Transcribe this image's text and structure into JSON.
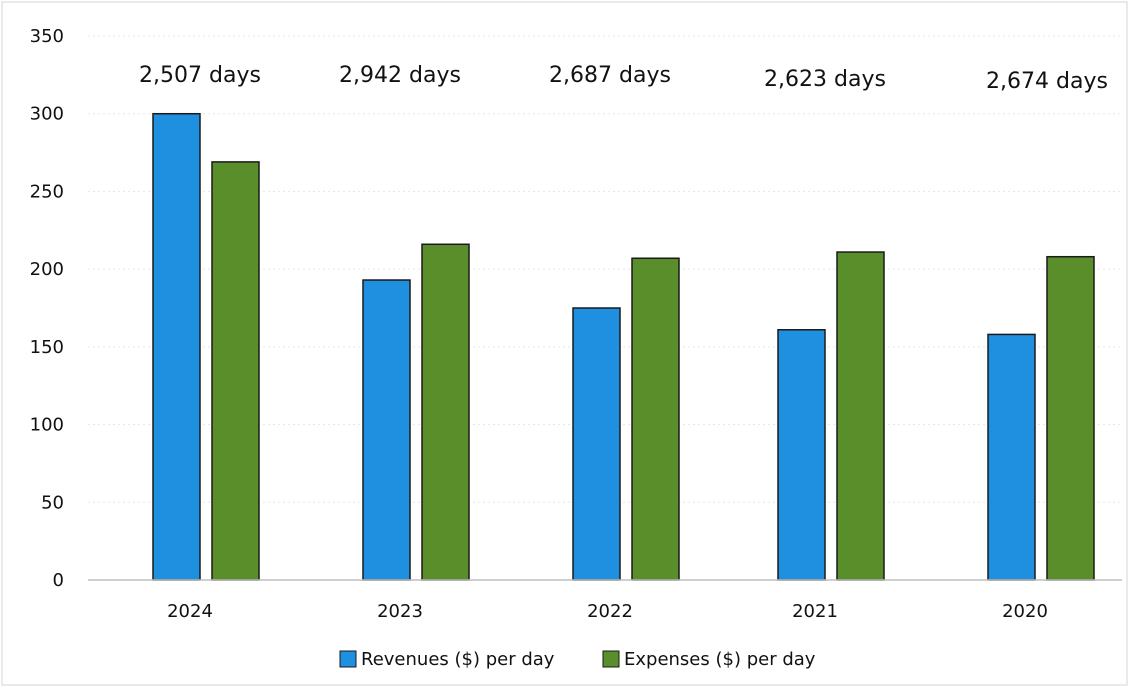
{
  "chart_data": {
    "type": "bar",
    "title": "",
    "xlabel": "",
    "ylabel": "",
    "categories": [
      "2024",
      "2023",
      "2022",
      "2021",
      "2020"
    ],
    "series": [
      {
        "name": "Revenues ($) per day",
        "color": "#1f8fe0",
        "values": [
          300,
          193,
          175,
          161,
          158
        ]
      },
      {
        "name": "Expenses ($) per day",
        "color": "#5a8e2a",
        "values": [
          269,
          216,
          207,
          211,
          208
        ]
      }
    ],
    "annotations": [
      "2,507 days",
      "2,942 days",
      "2,687 days",
      "2,623 days",
      "2,674 days"
    ],
    "ylim": [
      0,
      350
    ],
    "yticks": [
      0,
      50,
      100,
      150,
      200,
      250,
      300,
      350
    ],
    "grid": true,
    "legend": "bottom"
  }
}
